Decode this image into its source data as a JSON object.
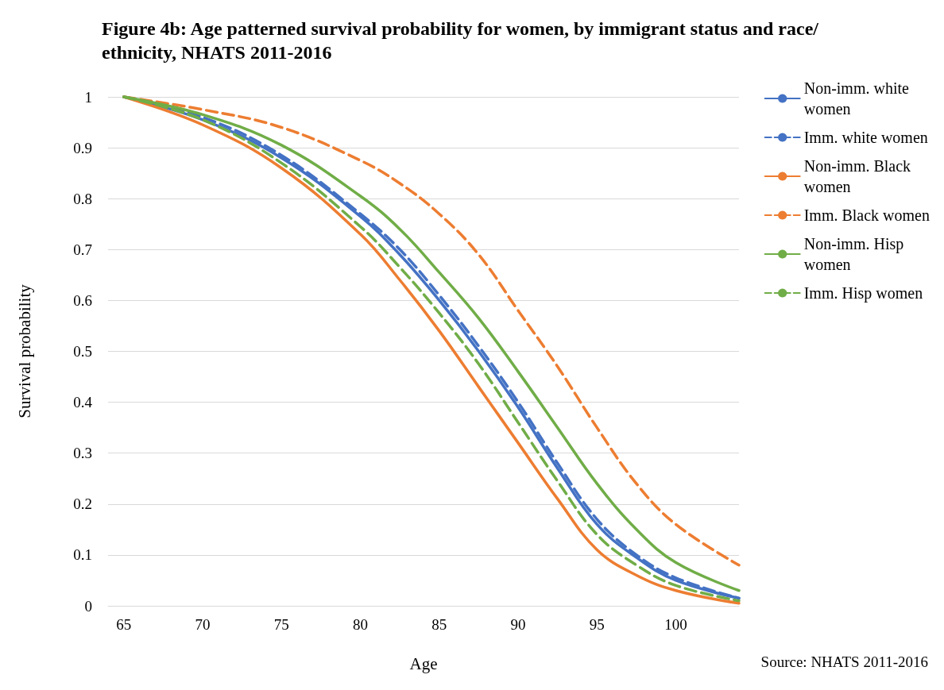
{
  "chart_data": {
    "type": "line",
    "title": "Figure 4b: Age patterned survival probability for women, by immigrant status and race/ethnicity, NHATS 2011-2016",
    "xlabel": "Age",
    "ylabel": "Survival probability",
    "annotations": [
      "Source: NHATS 2011-2016"
    ],
    "x": [
      65,
      70,
      75,
      80,
      82.5,
      85,
      87.5,
      90,
      92.5,
      95,
      97.5,
      100,
      104
    ],
    "xlim": [
      64,
      104
    ],
    "xticks": [
      65,
      70,
      75,
      80,
      85,
      90,
      95,
      100
    ],
    "ylim": [
      0,
      1
    ],
    "yticks": [
      0,
      0.1,
      0.2,
      0.3,
      0.4,
      0.5,
      0.6,
      0.7,
      0.8,
      0.9,
      1
    ],
    "grid": "y",
    "legend": "right",
    "marker": "none",
    "series": [
      {
        "name": "Non-imm. white women",
        "color": "#4472c4",
        "line_style": "solid",
        "values": [
          1,
          0.955,
          0.88,
          0.765,
          0.69,
          0.6,
          0.5,
          0.39,
          0.27,
          0.16,
          0.095,
          0.05,
          0.015
        ]
      },
      {
        "name": "Imm. white women",
        "color": "#4472c4",
        "line_style": "dashed",
        "values": [
          1,
          0.96,
          0.885,
          0.77,
          0.7,
          0.61,
          0.51,
          0.4,
          0.28,
          0.17,
          0.1,
          0.055,
          0.015
        ]
      },
      {
        "name": "Non-imm. Black women",
        "color": "#ed7d31",
        "line_style": "solid",
        "values": [
          1,
          0.945,
          0.86,
          0.73,
          0.64,
          0.54,
          0.43,
          0.32,
          0.21,
          0.11,
          0.06,
          0.03,
          0.005
        ]
      },
      {
        "name": "Imm. Black women",
        "color": "#ed7d31",
        "line_style": "dashed",
        "values": [
          1,
          0.975,
          0.94,
          0.875,
          0.83,
          0.77,
          0.69,
          0.58,
          0.47,
          0.35,
          0.24,
          0.16,
          0.08
        ]
      },
      {
        "name": "Non-imm. Hisp women",
        "color": "#70ad47",
        "line_style": "solid",
        "values": [
          1,
          0.965,
          0.905,
          0.805,
          0.74,
          0.655,
          0.565,
          0.46,
          0.35,
          0.24,
          0.15,
          0.085,
          0.03
        ]
      },
      {
        "name": "Imm. Hisp women",
        "color": "#70ad47",
        "line_style": "dashed",
        "values": [
          1,
          0.955,
          0.87,
          0.745,
          0.665,
          0.575,
          0.475,
          0.36,
          0.245,
          0.14,
          0.08,
          0.04,
          0.01
        ]
      }
    ]
  }
}
